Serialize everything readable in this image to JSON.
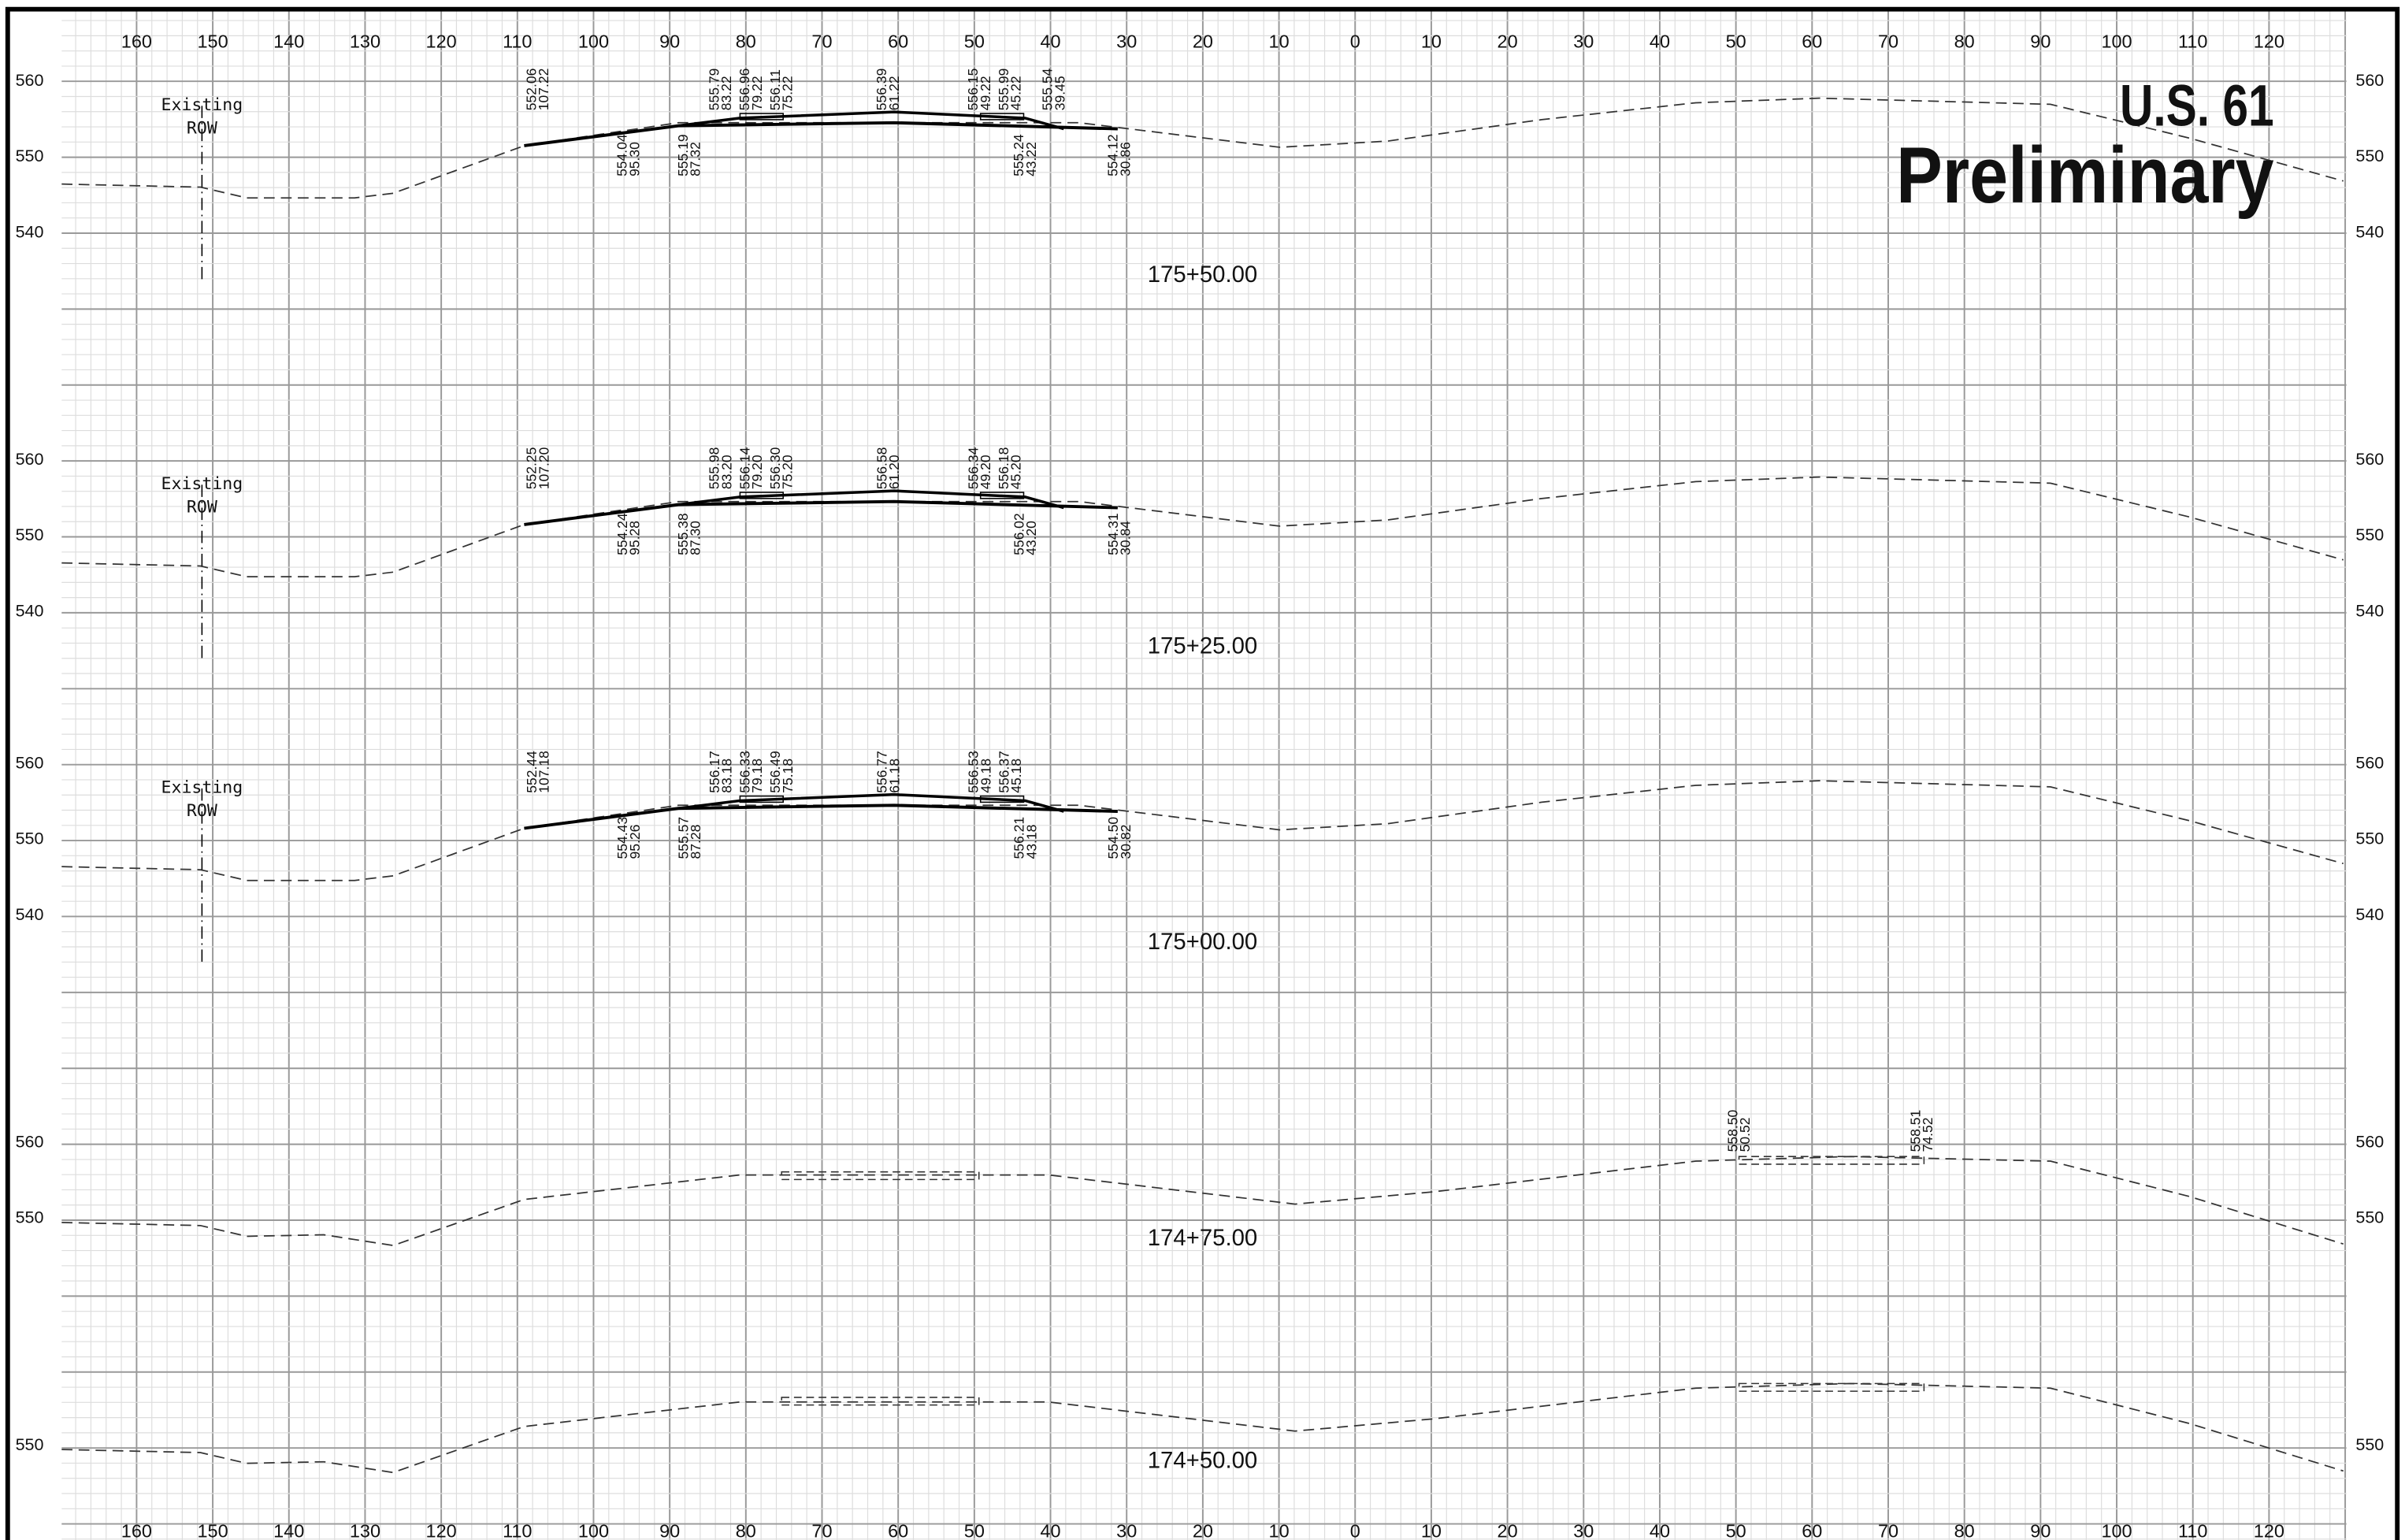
{
  "title": "U.S. 61",
  "subtitle": "Preliminary",
  "top_axis": [
    "160",
    "150",
    "140",
    "130",
    "120",
    "110",
    "100",
    "90",
    "80",
    "70",
    "60",
    "50",
    "40",
    "30",
    "20",
    "10",
    "0",
    "10",
    "20",
    "30",
    "40",
    "50",
    "60",
    "70",
    "80",
    "90",
    "100",
    "110",
    "120"
  ],
  "bottom_axis": [
    "160",
    "150",
    "140",
    "130",
    "120",
    "110",
    "100",
    "90",
    "80",
    "70",
    "60",
    "50",
    "40",
    "30",
    "20",
    "10",
    "0",
    "10",
    "20",
    "30",
    "40",
    "50",
    "60",
    "70",
    "80",
    "90",
    "100",
    "110",
    "120"
  ],
  "sections": [
    {
      "station": "175+50.00",
      "elevations": [
        "560",
        "550",
        "540"
      ],
      "row_label": [
        "Existing",
        "ROW"
      ],
      "labels_above": [
        {
          "elev": "552.06",
          "offset": "107.22"
        },
        {
          "elev": "555.79",
          "offset": "83.22"
        },
        {
          "elev": "556.96",
          "offset": "79.22"
        },
        {
          "elev": "556.11",
          "offset": "75.22"
        },
        {
          "elev": "556.39",
          "offset": "61.22"
        },
        {
          "elev": "556.15",
          "offset": "49.22"
        },
        {
          "elev": "555.99",
          "offset": "45.22"
        },
        {
          "elev": "555.54",
          "offset": "39.45"
        }
      ],
      "labels_below": [
        {
          "elev": "554.04",
          "offset": "95.30"
        },
        {
          "elev": "555.19",
          "offset": "87.32"
        },
        {
          "elev": "555.24",
          "offset": "43.22"
        },
        {
          "elev": "554.12",
          "offset": "30.86"
        }
      ]
    },
    {
      "station": "175+25.00",
      "elevations": [
        "560",
        "550",
        "540"
      ],
      "row_label": [
        "Existing",
        "ROW"
      ],
      "labels_above": [
        {
          "elev": "552.25",
          "offset": "107.20"
        },
        {
          "elev": "555.98",
          "offset": "83.20"
        },
        {
          "elev": "556.14",
          "offset": "79.20"
        },
        {
          "elev": "556.30",
          "offset": "75.20"
        },
        {
          "elev": "556.58",
          "offset": "61.20"
        },
        {
          "elev": "556.34",
          "offset": "49.20"
        },
        {
          "elev": "556.18",
          "offset": "45.20"
        }
      ],
      "labels_below": [
        {
          "elev": "554.24",
          "offset": "95.28"
        },
        {
          "elev": "555.38",
          "offset": "87.30"
        },
        {
          "elev": "556.02",
          "offset": "43.20"
        },
        {
          "elev": "554.31",
          "offset": "30.84"
        }
      ]
    },
    {
      "station": "175+00.00",
      "elevations": [
        "560",
        "550",
        "540"
      ],
      "row_label": [
        "Existing",
        "ROW"
      ],
      "labels_above": [
        {
          "elev": "552.44",
          "offset": "107.18"
        },
        {
          "elev": "556.17",
          "offset": "83.18"
        },
        {
          "elev": "556.33",
          "offset": "79.18"
        },
        {
          "elev": "556.49",
          "offset": "75.18"
        },
        {
          "elev": "556.77",
          "offset": "61.18"
        },
        {
          "elev": "556.53",
          "offset": "49.18"
        },
        {
          "elev": "556.37",
          "offset": "45.18"
        }
      ],
      "labels_below": [
        {
          "elev": "554.43",
          "offset": "95.26"
        },
        {
          "elev": "555.57",
          "offset": "87.28"
        },
        {
          "elev": "556.21",
          "offset": "43.18"
        },
        {
          "elev": "554.50",
          "offset": "30.82"
        }
      ]
    },
    {
      "station": "174+75.00",
      "elevations": [
        "560",
        "550"
      ],
      "labels_right": [
        {
          "elev": "558.50",
          "offset": "50.52"
        },
        {
          "elev": "558.51",
          "offset": "74.52"
        }
      ]
    },
    {
      "station": "174+50.00",
      "elevations": [
        "550"
      ]
    }
  ]
}
